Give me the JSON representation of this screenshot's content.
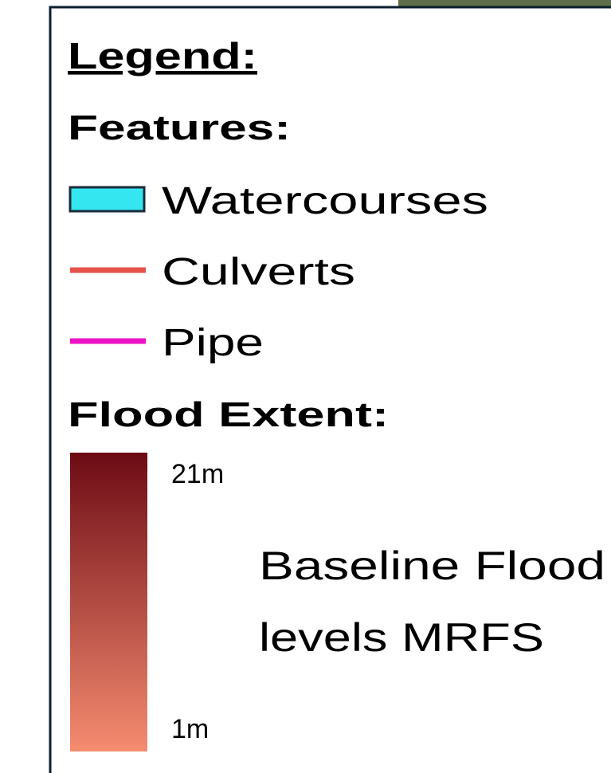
{
  "legend": {
    "title": "Legend:",
    "features_heading": "Features:",
    "features": [
      {
        "label": "Watercourses",
        "color": "#33e6f0",
        "style": "box"
      },
      {
        "label": "Culverts",
        "color": "#e5534b",
        "style": "line"
      },
      {
        "label": "Pipe",
        "color": "#ee11c4",
        "style": "line"
      }
    ],
    "flood_extent": {
      "heading": "Flood Extent:",
      "max_label": "21m",
      "min_label": "1m",
      "colors": [
        "#6d0b15",
        "#f58c70"
      ],
      "description": [
        "Baseline Flood",
        "levels MRFS"
      ]
    }
  }
}
